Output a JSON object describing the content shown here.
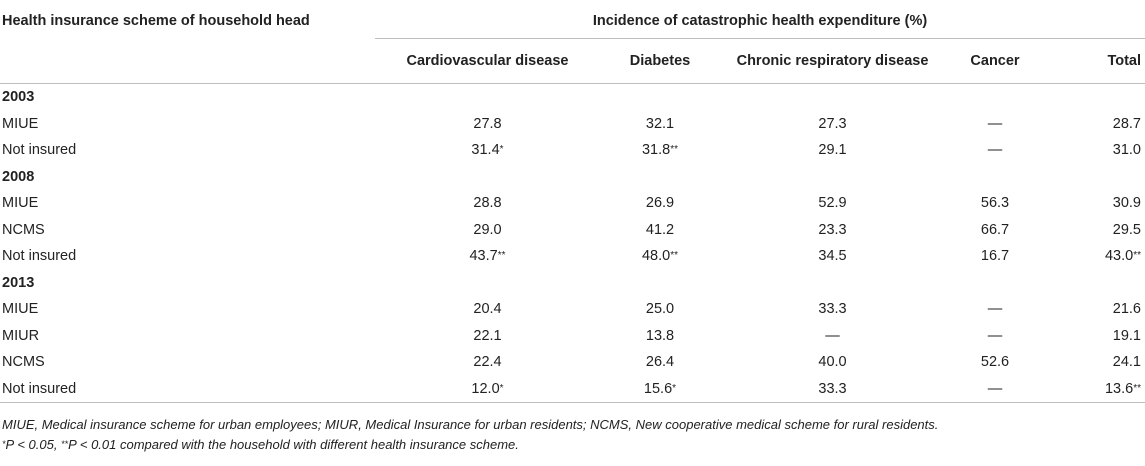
{
  "table": {
    "header_left": "Health insurance scheme of household head",
    "header_group": "Incidence of catastrophic health expenditure (%)",
    "columns": [
      "Cardiovascular disease",
      "Diabetes",
      "Chronic respiratory disease",
      "Cancer",
      "Total"
    ],
    "groups": [
      {
        "year": "2003",
        "rows": [
          {
            "label": "MIUE",
            "cells": [
              {
                "v": "27.8",
                "s": ""
              },
              {
                "v": "32.1",
                "s": ""
              },
              {
                "v": "27.3",
                "s": ""
              },
              {
                "v": "—",
                "s": ""
              },
              {
                "v": "28.7",
                "s": ""
              }
            ]
          },
          {
            "label": "Not insured",
            "cells": [
              {
                "v": "31.4",
                "s": "*"
              },
              {
                "v": "31.8",
                "s": "**"
              },
              {
                "v": "29.1",
                "s": ""
              },
              {
                "v": "—",
                "s": ""
              },
              {
                "v": "31.0",
                "s": ""
              }
            ]
          }
        ]
      },
      {
        "year": "2008",
        "rows": [
          {
            "label": "MIUE",
            "cells": [
              {
                "v": "28.8",
                "s": ""
              },
              {
                "v": "26.9",
                "s": ""
              },
              {
                "v": "52.9",
                "s": ""
              },
              {
                "v": "56.3",
                "s": ""
              },
              {
                "v": "30.9",
                "s": ""
              }
            ]
          },
          {
            "label": "NCMS",
            "cells": [
              {
                "v": "29.0",
                "s": ""
              },
              {
                "v": "41.2",
                "s": ""
              },
              {
                "v": "23.3",
                "s": ""
              },
              {
                "v": "66.7",
                "s": ""
              },
              {
                "v": "29.5",
                "s": ""
              }
            ]
          },
          {
            "label": "Not insured",
            "cells": [
              {
                "v": "43.7",
                "s": "**"
              },
              {
                "v": "48.0",
                "s": "**"
              },
              {
                "v": "34.5",
                "s": ""
              },
              {
                "v": "16.7",
                "s": ""
              },
              {
                "v": "43.0",
                "s": "**"
              }
            ]
          }
        ]
      },
      {
        "year": "2013",
        "rows": [
          {
            "label": "MIUE",
            "cells": [
              {
                "v": "20.4",
                "s": ""
              },
              {
                "v": "25.0",
                "s": ""
              },
              {
                "v": "33.3",
                "s": ""
              },
              {
                "v": "—",
                "s": ""
              },
              {
                "v": "21.6",
                "s": ""
              }
            ]
          },
          {
            "label": "MIUR",
            "cells": [
              {
                "v": "22.1",
                "s": ""
              },
              {
                "v": "13.8",
                "s": ""
              },
              {
                "v": "—",
                "s": ""
              },
              {
                "v": "—",
                "s": ""
              },
              {
                "v": "19.1",
                "s": ""
              }
            ]
          },
          {
            "label": "NCMS",
            "cells": [
              {
                "v": "22.4",
                "s": ""
              },
              {
                "v": "26.4",
                "s": ""
              },
              {
                "v": "40.0",
                "s": ""
              },
              {
                "v": "52.6",
                "s": ""
              },
              {
                "v": "24.1",
                "s": ""
              }
            ]
          },
          {
            "label": "Not insured",
            "cells": [
              {
                "v": "12.0",
                "s": "*"
              },
              {
                "v": "15.6",
                "s": "*"
              },
              {
                "v": "33.3",
                "s": ""
              },
              {
                "v": "—",
                "s": ""
              },
              {
                "v": "13.6",
                "s": "**"
              }
            ]
          }
        ]
      }
    ]
  },
  "notes": {
    "abbreviations": "MIUE, Medical insurance scheme for urban employees; MIUR, Medical Insurance for urban residents; NCMS, New cooperative medical scheme for rural residents.",
    "sig_star1": "*",
    "sig_text1": "P < 0.05, ",
    "sig_star2": "**",
    "sig_text2": "P < 0.01 compared with the household with different health insurance scheme."
  }
}
